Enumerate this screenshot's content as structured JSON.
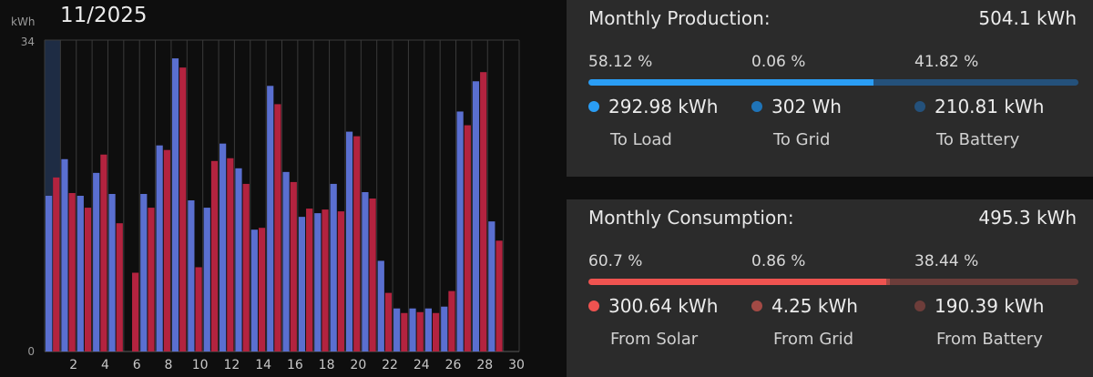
{
  "chart_data": {
    "type": "bar",
    "month": "11/2025",
    "unit_label": "kWh",
    "ylim": [
      0,
      34
    ],
    "y_ticks": [
      "0",
      "34"
    ],
    "categories": [
      "1",
      "2",
      "3",
      "4",
      "5",
      "6",
      "7",
      "8",
      "9",
      "10",
      "11",
      "12",
      "13",
      "14",
      "15",
      "16",
      "17",
      "18",
      "19",
      "20",
      "21",
      "22",
      "23",
      "24",
      "25",
      "26",
      "27",
      "28",
      "29",
      "30"
    ],
    "x_tick_labels": [
      "2",
      "4",
      "6",
      "8",
      "10",
      "12",
      "14",
      "16",
      "18",
      "20",
      "22",
      "24",
      "26",
      "28",
      "30"
    ],
    "series": [
      {
        "color": "#5a6fd0",
        "values": [
          17.0,
          21.0,
          17.0,
          19.5,
          17.2,
          0.0,
          17.2,
          22.5,
          32.0,
          16.5,
          15.7,
          22.7,
          20.0,
          13.3,
          29.0,
          19.6,
          14.7,
          15.1,
          18.3,
          24.0,
          17.4,
          9.9,
          4.7,
          4.7,
          4.7,
          4.9,
          26.2,
          29.5,
          14.2,
          0.0
        ]
      },
      {
        "color": "#b3233f",
        "values": [
          19.0,
          17.3,
          15.7,
          21.5,
          14.0,
          8.6,
          15.7,
          22.0,
          31.0,
          9.2,
          20.8,
          21.1,
          18.3,
          13.5,
          27.0,
          18.5,
          15.6,
          15.5,
          15.3,
          23.5,
          16.7,
          6.4,
          4.2,
          4.3,
          4.2,
          6.6,
          24.7,
          30.5,
          12.1,
          0.0
        ]
      }
    ],
    "highlight_column": 1,
    "grid": true
  },
  "production": {
    "title": "Monthly Production:",
    "total": "504.1 kWh",
    "segments": [
      {
        "percent_label": "58.12 %",
        "fraction": 0.5812,
        "value": "292.98 kWh",
        "label": "To Load",
        "color": "#2a9df4"
      },
      {
        "percent_label": "0.06 %",
        "fraction": 0.0006,
        "value": "302 Wh",
        "label": "To Grid",
        "color": "#1f74b8"
      },
      {
        "percent_label": "41.82 %",
        "fraction": 0.4182,
        "value": "210.81 kWh",
        "label": "To Battery",
        "color": "#24517b"
      }
    ]
  },
  "consumption": {
    "title": "Monthly Consumption:",
    "total": "495.3 kWh",
    "segments": [
      {
        "percent_label": "60.7 %",
        "fraction": 0.607,
        "value": "300.64 kWh",
        "label": "From Solar",
        "color": "#ef5350"
      },
      {
        "percent_label": "0.86 %",
        "fraction": 0.0086,
        "value": "4.25 kWh",
        "label": "From Grid",
        "color": "#a34a45"
      },
      {
        "percent_label": "38.44 %",
        "fraction": 0.3844,
        "value": "190.39 kWh",
        "label": "From Battery",
        "color": "#6d3d3a"
      }
    ]
  }
}
